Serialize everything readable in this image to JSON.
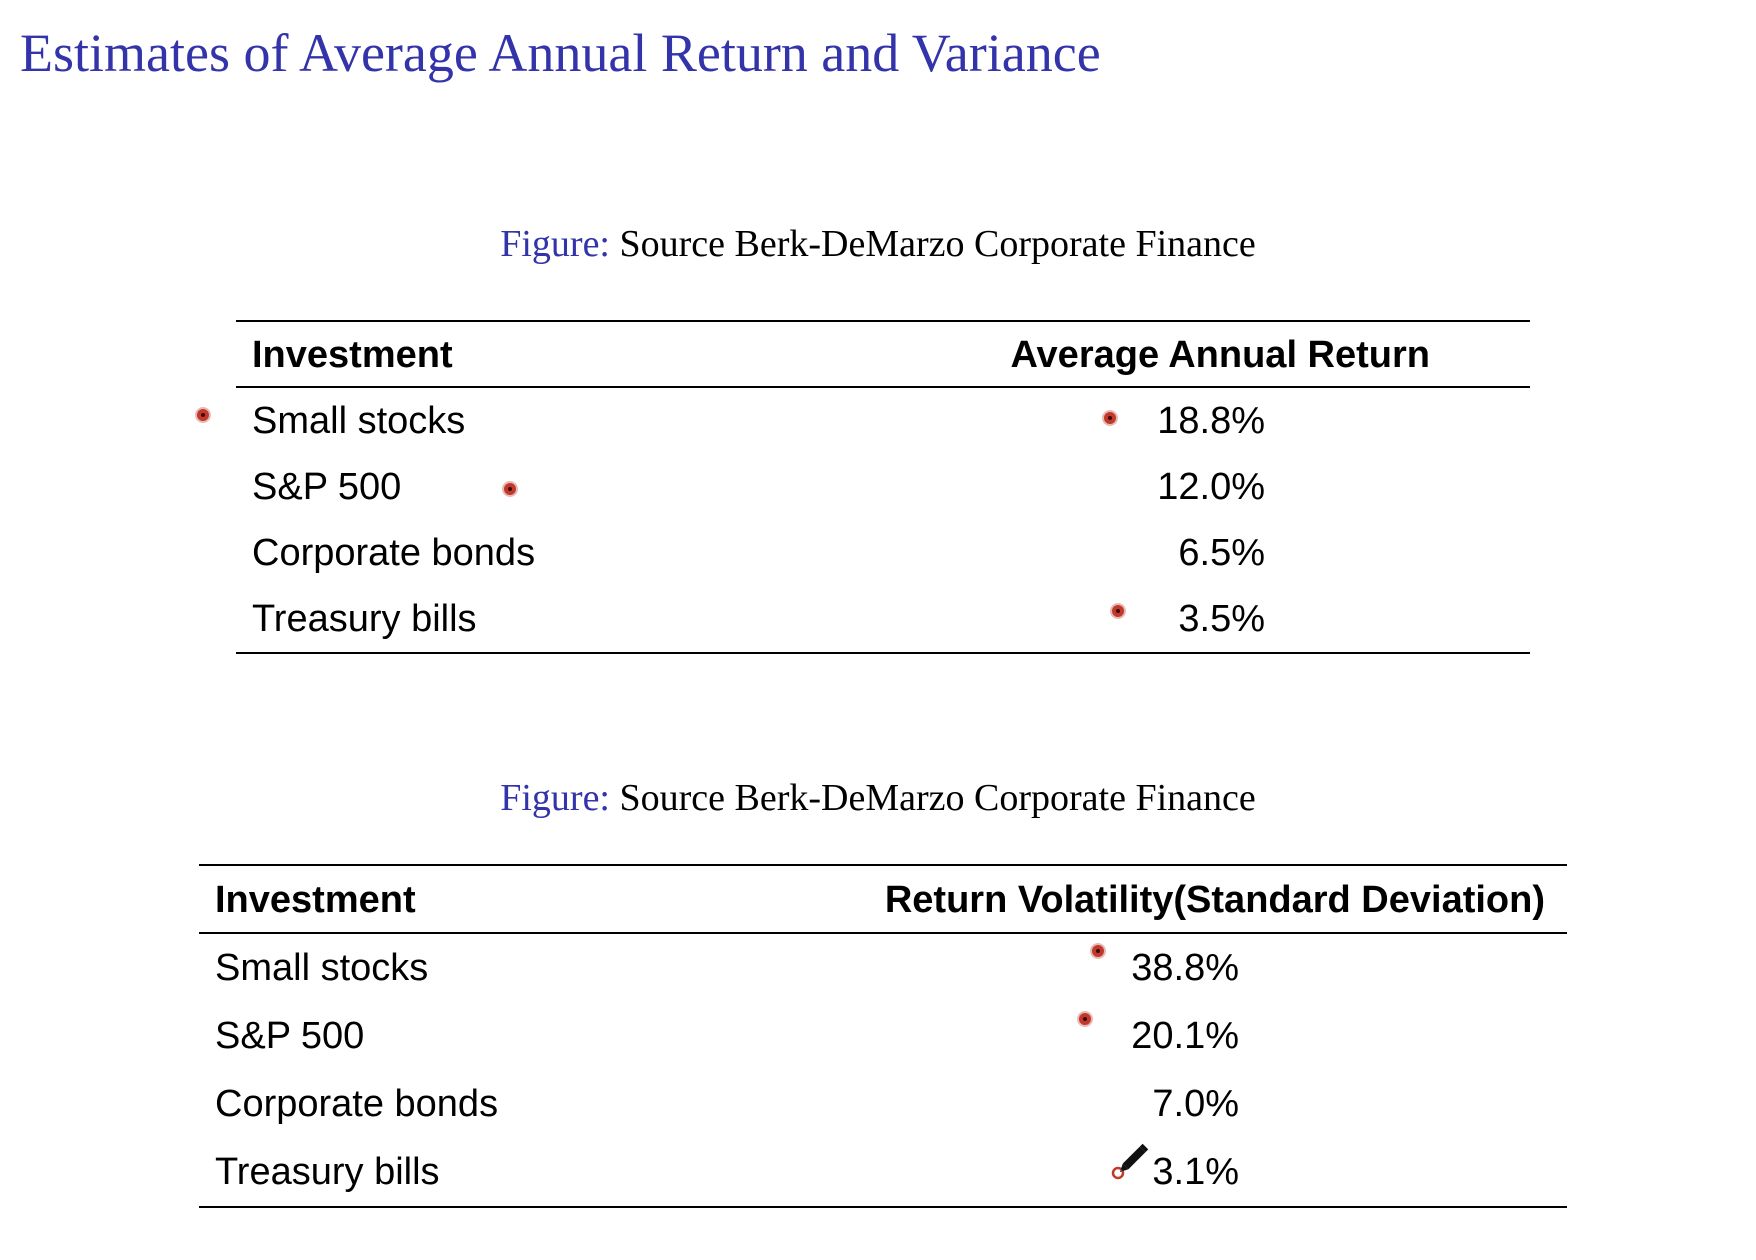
{
  "title": "Estimates of Average Annual Return and Variance",
  "colors": {
    "title": "#3333aa",
    "caption_label": "#3333aa",
    "annotation_mark": "#c0392b"
  },
  "figure1": {
    "caption_label": "Figure:",
    "caption_text": "Source Berk-DeMarzo Corporate Finance",
    "headers": [
      "Investment",
      "Average Annual Return"
    ],
    "rows": [
      {
        "investment": "Small stocks",
        "value": "18.8%"
      },
      {
        "investment": "S&P 500",
        "value": "12.0%"
      },
      {
        "investment": "Corporate bonds",
        "value": "6.5%"
      },
      {
        "investment": "Treasury bills",
        "value": "3.5%"
      }
    ]
  },
  "figure2": {
    "caption_label": "Figure:",
    "caption_text": "Source Berk-DeMarzo Corporate Finance",
    "headers": [
      "Investment",
      "Return Volatility(Standard Deviation)"
    ],
    "rows": [
      {
        "investment": "Small stocks",
        "value": "38.8%"
      },
      {
        "investment": "S&P 500",
        "value": "20.1%"
      },
      {
        "investment": "Corporate bonds",
        "value": "7.0%"
      },
      {
        "investment": "Treasury bills",
        "value": "3.1%"
      }
    ]
  },
  "annotation_tool_icon": "pencil-icon"
}
